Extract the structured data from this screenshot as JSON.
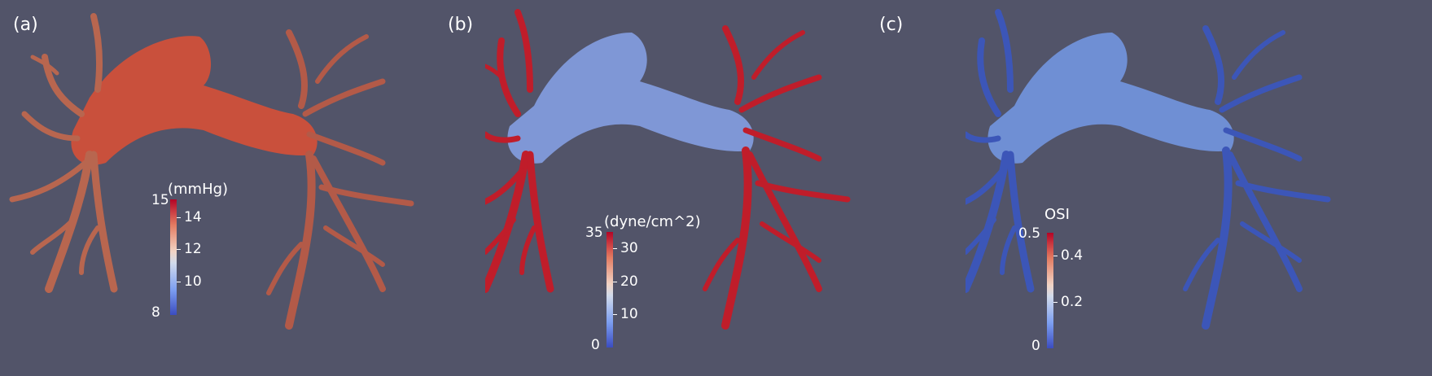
{
  "panels": [
    {
      "label": "(a)",
      "colorbar": {
        "title": "(mmHg)",
        "min_label": "8",
        "max_label": "15",
        "ticks": [
          "14",
          "12",
          "10"
        ]
      },
      "colors": {
        "trunk": "#c9503c",
        "left_tree": "#b8664f",
        "right_tree": "#b35a48"
      }
    },
    {
      "label": "(b)",
      "colorbar": {
        "title": "(dyne/cm^2)",
        "min_label": "0",
        "max_label": "35",
        "ticks": [
          "30",
          "20",
          "10"
        ]
      },
      "colors": {
        "trunk": "#7f97d6",
        "left_tree": "#c01d2a",
        "right_tree": "#c01d2a"
      }
    },
    {
      "label": "(c)",
      "colorbar": {
        "title": "OSI",
        "min_label": "0",
        "max_label": "0.5",
        "ticks": [
          "0.4",
          "0.2"
        ]
      },
      "colors": {
        "trunk": "#6f8fd4",
        "left_tree": "#3c56b8",
        "right_tree": "#3c56b8"
      }
    }
  ]
}
